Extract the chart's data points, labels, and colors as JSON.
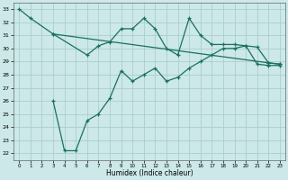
{
  "xlabel": "Humidex (Indice chaleur)",
  "xlim": [
    -0.5,
    23.5
  ],
  "ylim": [
    21.5,
    33.5
  ],
  "yticks": [
    22,
    23,
    24,
    25,
    26,
    27,
    28,
    29,
    30,
    31,
    32,
    33
  ],
  "xticks": [
    0,
    1,
    2,
    3,
    4,
    5,
    6,
    7,
    8,
    9,
    10,
    11,
    12,
    13,
    14,
    15,
    16,
    17,
    18,
    19,
    20,
    21,
    22,
    23
  ],
  "line_color": "#1a7060",
  "bg_color": "#cce8e8",
  "grid_color": "#aacece",
  "line_top_x": [
    0,
    1,
    3,
    22,
    23
  ],
  "line_top_y": [
    33.0,
    32.3,
    31.1,
    28.9,
    28.8
  ],
  "line_mid_x": [
    3,
    6,
    7,
    8,
    9,
    10,
    11,
    12,
    13,
    14,
    15,
    16,
    17,
    18,
    19,
    20,
    21,
    22,
    23
  ],
  "line_mid_y": [
    31.1,
    29.5,
    30.2,
    30.5,
    31.5,
    31.5,
    32.3,
    31.5,
    30.0,
    29.5,
    32.3,
    31.0,
    30.3,
    30.3,
    30.3,
    30.2,
    30.1,
    28.9,
    28.8
  ],
  "line_bot_x": [
    3,
    4,
    5,
    6,
    7,
    8,
    9,
    10,
    11,
    12,
    13,
    14,
    15,
    16,
    17,
    18,
    19,
    20,
    21,
    22,
    23
  ],
  "line_bot_y": [
    26.0,
    22.2,
    22.2,
    24.5,
    25.0,
    26.2,
    28.3,
    27.5,
    28.0,
    28.5,
    27.5,
    27.8,
    28.5,
    29.0,
    29.5,
    30.0,
    30.0,
    30.2,
    28.8,
    28.7,
    28.7
  ]
}
